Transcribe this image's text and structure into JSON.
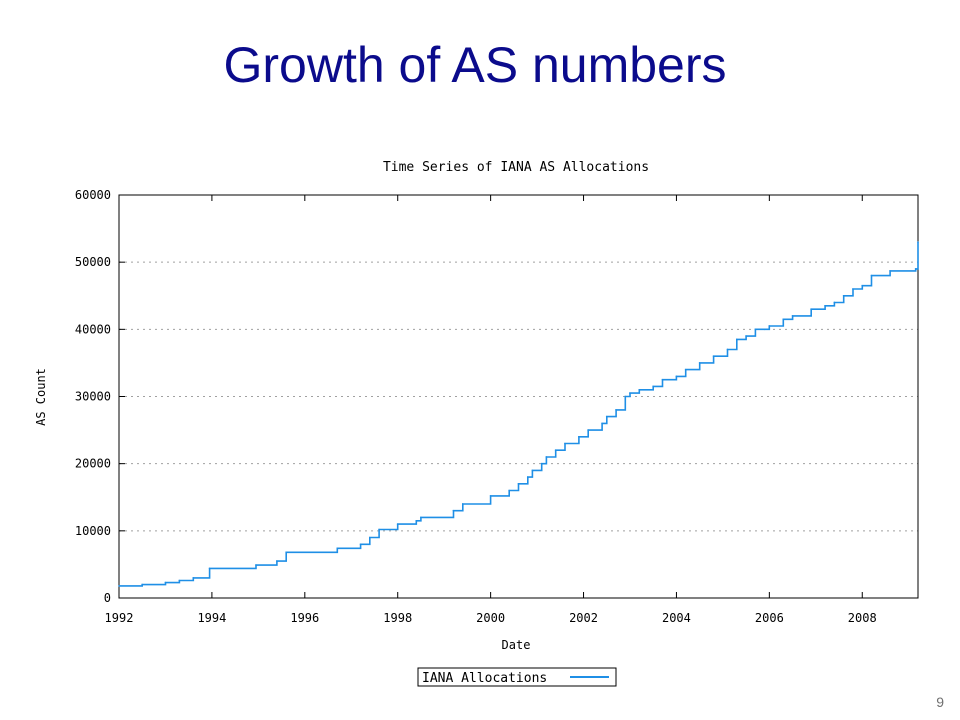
{
  "slide": {
    "title": "Growth of AS numbers",
    "page_number": "9"
  },
  "colors": {
    "title": "#0b0b8c",
    "series": "#1f8fe6",
    "grid": "#a0a0a0"
  },
  "chart_data": {
    "type": "line",
    "title": "Time Series of IANA AS Allocations",
    "xlabel": "Date",
    "ylabel": "AS Count",
    "xlim": [
      1992,
      2009.2
    ],
    "ylim": [
      0,
      60000
    ],
    "x_ticks": [
      1992,
      1994,
      1996,
      1998,
      2000,
      2002,
      2004,
      2006,
      2008
    ],
    "y_ticks": [
      0,
      10000,
      20000,
      30000,
      40000,
      50000,
      60000
    ],
    "grid": "horizontal dotted",
    "legend_position": "bottom-center",
    "series": [
      {
        "name": "IANA Allocations",
        "step": true,
        "x": [
          1992.0,
          1992.5,
          1993.0,
          1993.3,
          1993.6,
          1993.95,
          1994.95,
          1995.4,
          1995.6,
          1996.7,
          1997.2,
          1997.4,
          1997.6,
          1998.0,
          1998.4,
          1998.5,
          1999.2,
          1999.4,
          2000.0,
          2000.4,
          2000.6,
          2000.8,
          2000.9,
          2001.1,
          2001.2,
          2001.4,
          2001.6,
          2001.9,
          2002.1,
          2002.4,
          2002.5,
          2002.7,
          2002.9,
          2003.0,
          2003.2,
          2003.5,
          2003.7,
          2004.0,
          2004.2,
          2004.5,
          2004.8,
          2005.1,
          2005.3,
          2005.5,
          2005.7,
          2005.9,
          2006.0,
          2006.3,
          2006.5,
          2006.9,
          2007.2,
          2007.4,
          2007.6,
          2007.8,
          2008.0,
          2008.2,
          2008.6,
          2009.15,
          2009.2
        ],
        "y": [
          1800,
          2000,
          2300,
          2600,
          3000,
          4400,
          4900,
          5500,
          6800,
          7400,
          8000,
          9000,
          10200,
          11000,
          11500,
          12000,
          13000,
          14000,
          15200,
          16000,
          17000,
          18000,
          19000,
          20000,
          21000,
          22000,
          23000,
          24000,
          25000,
          26000,
          27000,
          28000,
          30000,
          30500,
          31000,
          31500,
          32500,
          33000,
          34000,
          35000,
          36000,
          37000,
          38500,
          39000,
          40000,
          40000,
          40500,
          41500,
          42000,
          43000,
          43500,
          44000,
          45000,
          46000,
          46500,
          48000,
          48700,
          49000,
          53000
        ]
      }
    ]
  }
}
